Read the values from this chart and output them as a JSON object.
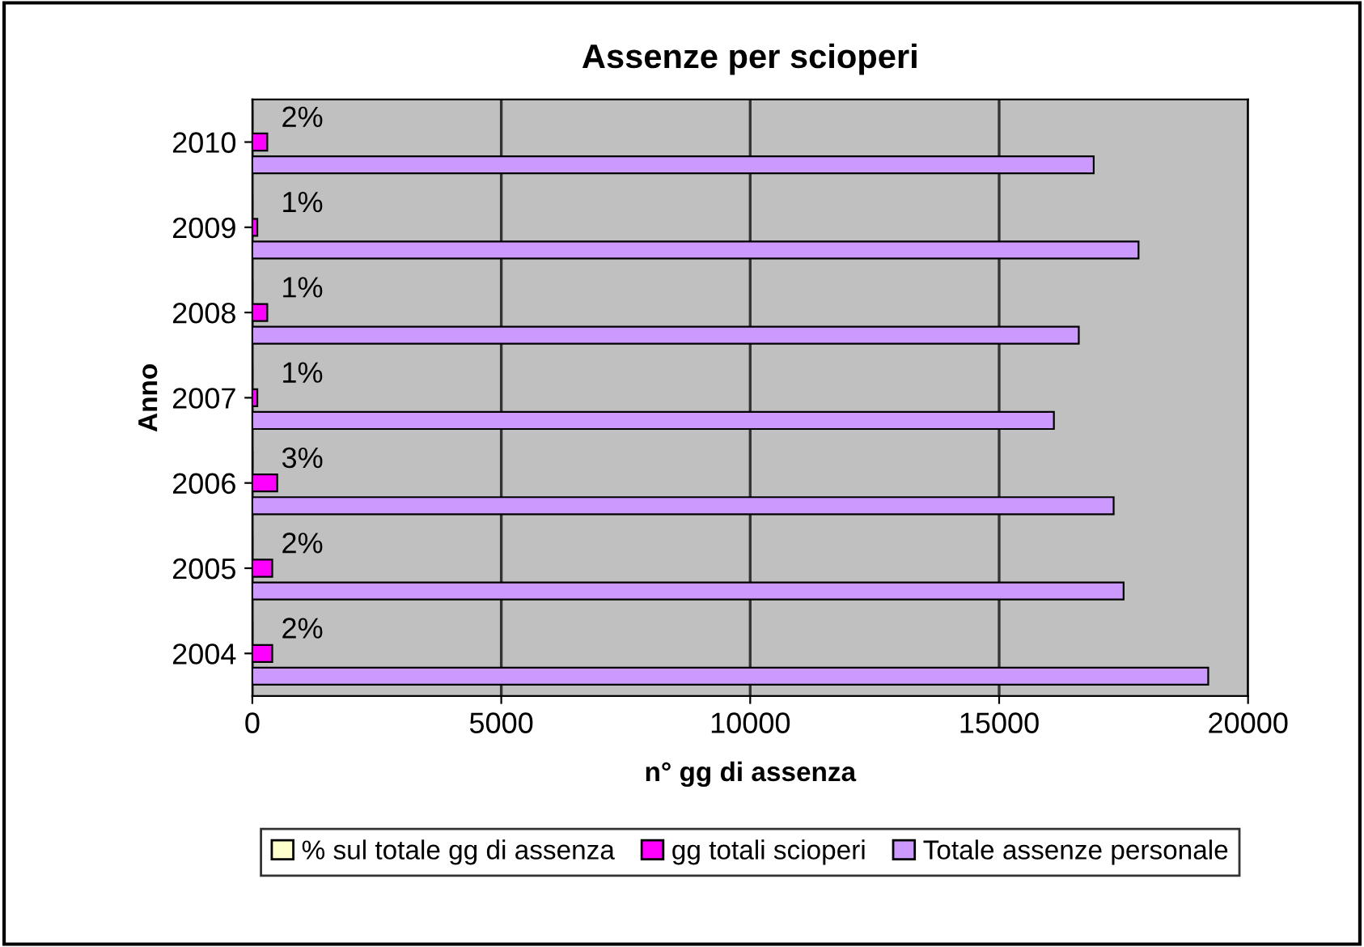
{
  "chart_data": {
    "type": "bar",
    "orientation": "horizontal",
    "title": "Assenze per scioperi",
    "xlabel": "n° gg di assenza",
    "ylabel": "Anno",
    "categories": [
      "2010",
      "2009",
      "2008",
      "2007",
      "2006",
      "2005",
      "2004"
    ],
    "series": [
      {
        "name": "% sul totale gg di assenza",
        "color": "#ffffcc",
        "values": [
          2,
          1,
          1,
          1,
          3,
          2,
          2
        ],
        "value_labels": [
          "2%",
          "1%",
          "1%",
          "1%",
          "3%",
          "2%",
          "2%"
        ]
      },
      {
        "name": "gg totali scioperi",
        "color": "#ff00ff",
        "values": [
          300,
          100,
          300,
          100,
          500,
          400,
          400
        ]
      },
      {
        "name": "Totale assenze personale",
        "color": "#cc99ff",
        "values": [
          16900,
          17800,
          16600,
          16100,
          17300,
          17500,
          19200
        ]
      }
    ],
    "xlim": [
      0,
      20000
    ],
    "xticks": [
      0,
      5000,
      10000,
      15000,
      20000
    ],
    "grid": "x",
    "legend": "bottom"
  }
}
